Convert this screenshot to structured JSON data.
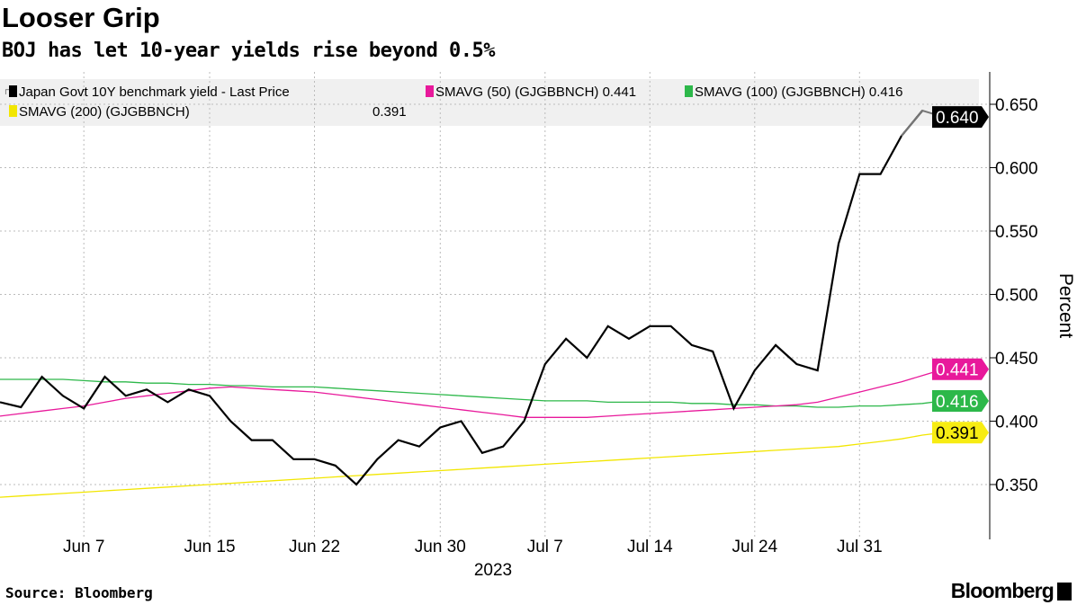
{
  "title": "Looser Grip",
  "subtitle": "BOJ has let 10-year yields rise beyond 0.5%",
  "source": "Source: Bloomberg",
  "logo": "Bloomberg",
  "chart_data": {
    "type": "line",
    "ylabel": "Percent",
    "xlabel": "2023",
    "ylim": [
      0.321,
      0.675
    ],
    "yticks": [
      "0.350",
      "0.400",
      "0.450",
      "0.500",
      "0.550",
      "0.600",
      "0.650"
    ],
    "grid": true,
    "legend_placement": "top",
    "x_tick_labels": [
      {
        "date": "2023-06-07",
        "label": "Jun 7"
      },
      {
        "date": "2023-06-15",
        "label": "Jun 15"
      },
      {
        "date": "2023-06-22",
        "label": "Jun 22"
      },
      {
        "date": "2023-06-30",
        "label": "Jun 30"
      },
      {
        "date": "2023-07-07",
        "label": "Jul 7"
      },
      {
        "date": "2023-07-14",
        "label": "Jul 14"
      },
      {
        "date": "2023-07-24",
        "label": "Jul 24"
      },
      {
        "date": "2023-07-31",
        "label": "Jul 31"
      }
    ],
    "x": [
      "2023-06-01",
      "2023-06-02",
      "2023-06-05",
      "2023-06-06",
      "2023-06-07",
      "2023-06-08",
      "2023-06-09",
      "2023-06-12",
      "2023-06-13",
      "2023-06-14",
      "2023-06-15",
      "2023-06-16",
      "2023-06-19",
      "2023-06-20",
      "2023-06-21",
      "2023-06-22",
      "2023-06-23",
      "2023-06-26",
      "2023-06-27",
      "2023-06-28",
      "2023-06-29",
      "2023-06-30",
      "2023-07-03",
      "2023-07-04",
      "2023-07-05",
      "2023-07-06",
      "2023-07-07",
      "2023-07-10",
      "2023-07-11",
      "2023-07-12",
      "2023-07-13",
      "2023-07-14",
      "2023-07-18",
      "2023-07-19",
      "2023-07-20",
      "2023-07-21",
      "2023-07-24",
      "2023-07-25",
      "2023-07-26",
      "2023-07-27",
      "2023-07-28",
      "2023-07-31",
      "2023-08-01",
      "2023-08-02",
      "2023-08-03",
      "2023-08-04"
    ],
    "series": [
      {
        "name": "Japan Govt 10Y benchmark yield - Last Price",
        "legend_value": "",
        "last": "0.640",
        "color": "#000000",
        "values": [
          0.415,
          0.411,
          0.435,
          0.42,
          0.41,
          0.435,
          0.42,
          0.425,
          0.415,
          0.425,
          0.42,
          0.4,
          0.385,
          0.385,
          0.37,
          0.37,
          0.365,
          0.35,
          0.37,
          0.385,
          0.38,
          0.395,
          0.4,
          0.375,
          0.38,
          0.4,
          0.445,
          0.465,
          0.45,
          0.475,
          0.465,
          0.475,
          0.475,
          0.46,
          0.455,
          0.41,
          0.44,
          0.46,
          0.445,
          0.44,
          0.54,
          0.595,
          0.595,
          0.625,
          0.645,
          0.64
        ]
      },
      {
        "name": "SMAVG (50) (GJGBBNCH)",
        "legend_value": "0.441",
        "last": "0.441",
        "color": "#e8199b",
        "values": [
          0.404,
          0.406,
          0.408,
          0.41,
          0.412,
          0.415,
          0.418,
          0.42,
          0.422,
          0.424,
          0.426,
          0.427,
          0.426,
          0.425,
          0.424,
          0.423,
          0.421,
          0.419,
          0.417,
          0.415,
          0.413,
          0.411,
          0.409,
          0.407,
          0.405,
          0.403,
          0.403,
          0.403,
          0.403,
          0.404,
          0.405,
          0.406,
          0.407,
          0.408,
          0.409,
          0.41,
          0.411,
          0.412,
          0.413,
          0.415,
          0.419,
          0.423,
          0.427,
          0.431,
          0.436,
          0.441
        ]
      },
      {
        "name": "SMAVG (100) (GJGBBNCH)",
        "legend_value": "0.416",
        "last": "0.416",
        "color": "#2db84a",
        "values": [
          0.433,
          0.433,
          0.433,
          0.433,
          0.432,
          0.431,
          0.431,
          0.43,
          0.43,
          0.429,
          0.429,
          0.428,
          0.428,
          0.427,
          0.427,
          0.427,
          0.426,
          0.425,
          0.424,
          0.423,
          0.422,
          0.421,
          0.42,
          0.419,
          0.418,
          0.417,
          0.416,
          0.416,
          0.416,
          0.415,
          0.415,
          0.415,
          0.415,
          0.414,
          0.414,
          0.413,
          0.413,
          0.412,
          0.412,
          0.411,
          0.411,
          0.412,
          0.412,
          0.413,
          0.414,
          0.416
        ]
      },
      {
        "name": "SMAVG (200) (GJGBBNCH)",
        "legend_value": "0.391",
        "last": "0.391",
        "color": "#f2e600",
        "values": [
          0.34,
          0.341,
          0.342,
          0.343,
          0.344,
          0.345,
          0.346,
          0.347,
          0.348,
          0.349,
          0.35,
          0.351,
          0.352,
          0.353,
          0.354,
          0.355,
          0.356,
          0.357,
          0.358,
          0.359,
          0.36,
          0.361,
          0.362,
          0.363,
          0.364,
          0.365,
          0.366,
          0.367,
          0.368,
          0.369,
          0.37,
          0.371,
          0.372,
          0.373,
          0.374,
          0.375,
          0.376,
          0.377,
          0.378,
          0.379,
          0.38,
          0.382,
          0.384,
          0.386,
          0.389,
          0.391
        ]
      }
    ]
  }
}
